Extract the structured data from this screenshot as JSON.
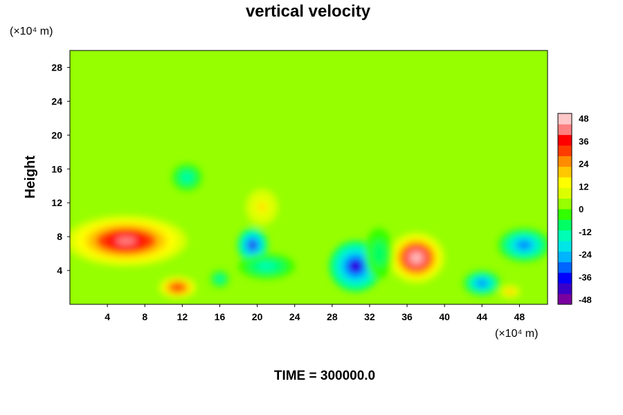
{
  "chart_data": {
    "type": "heatmap",
    "title": "vertical velocity",
    "xlabel": "",
    "ylabel": "Height",
    "x_unit_label": "(×10⁴ m)",
    "y_unit_label": "(×10⁴ m)",
    "footer": "TIME = 300000.0",
    "xlim": [
      0,
      51
    ],
    "ylim": [
      0,
      30
    ],
    "xticks": [
      "4",
      "8",
      "12",
      "16",
      "20",
      "24",
      "28",
      "32",
      "36",
      "40",
      "44",
      "48"
    ],
    "yticks": [
      "4",
      "8",
      "12",
      "16",
      "20",
      "24",
      "28"
    ],
    "colorbar": {
      "min": -48,
      "max": 48,
      "labels": [
        "48",
        "36",
        "24",
        "12",
        "0",
        "-12",
        "-24",
        "-36",
        "-48"
      ],
      "colors": [
        "#7a00a0",
        "#3a00c8",
        "#0000ff",
        "#0064ff",
        "#00b4ff",
        "#00e6e6",
        "#00ffb4",
        "#00ff64",
        "#32ff00",
        "#96ff00",
        "#dcff00",
        "#ffff00",
        "#ffc800",
        "#ff8c00",
        "#ff3c00",
        "#ff0000",
        "#ff8080",
        "#ffc8c8"
      ]
    },
    "background_value": 0,
    "features": [
      {
        "x": 6,
        "y": 7.5,
        "rx": 6.5,
        "ry": 3.0,
        "value": 40
      },
      {
        "x": 11.5,
        "y": 2.0,
        "rx": 2.0,
        "ry": 1.3,
        "value": 34
      },
      {
        "x": 19.5,
        "y": 7.0,
        "rx": 1.6,
        "ry": 2.0,
        "value": -38
      },
      {
        "x": 21,
        "y": 4.5,
        "rx": 3.0,
        "ry": 1.5,
        "value": -14
      },
      {
        "x": 30.5,
        "y": 4.5,
        "rx": 2.8,
        "ry": 3.0,
        "value": -40
      },
      {
        "x": 37,
        "y": 5.5,
        "rx": 3.0,
        "ry": 3.0,
        "value": 46
      },
      {
        "x": 44,
        "y": 2.5,
        "rx": 2.0,
        "ry": 1.5,
        "value": -30
      },
      {
        "x": 48.5,
        "y": 7.0,
        "rx": 2.8,
        "ry": 2.0,
        "value": -28
      },
      {
        "x": 47,
        "y": 1.5,
        "rx": 1.3,
        "ry": 0.9,
        "value": 20
      },
      {
        "x": 20.5,
        "y": 11.5,
        "rx": 2.0,
        "ry": 2.5,
        "value": 16
      },
      {
        "x": 12.5,
        "y": 15.0,
        "rx": 1.6,
        "ry": 1.6,
        "value": -16
      },
      {
        "x": 16,
        "y": 3.0,
        "rx": 1.0,
        "ry": 1.0,
        "value": -16
      },
      {
        "x": 33,
        "y": 6.0,
        "rx": 1.5,
        "ry": 3.0,
        "value": -10
      }
    ]
  }
}
